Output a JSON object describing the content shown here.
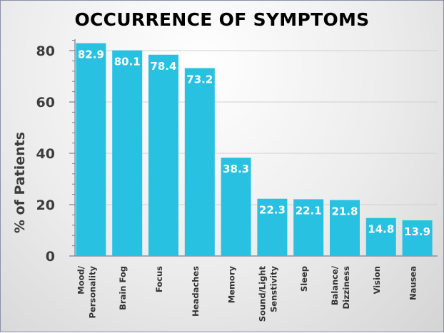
{
  "chart_data": {
    "type": "bar",
    "title": "OCCURRENCE OF SYMPTOMS",
    "xlabel": "",
    "ylabel": "% of Patients",
    "ylim": [
      0,
      85
    ],
    "yticks": [
      0,
      20,
      40,
      60,
      80
    ],
    "grid": true,
    "bar_color": "#29c1e2",
    "categories": [
      [
        "Mood/",
        "Personality"
      ],
      [
        "Brain Fog"
      ],
      [
        "Focus"
      ],
      [
        "Headaches"
      ],
      [
        "Memory"
      ],
      [
        "Sound/Light",
        "Senstivity"
      ],
      [
        "Sleep"
      ],
      [
        "Balance/",
        "Dizziness"
      ],
      [
        "Vision"
      ],
      [
        "Nausea"
      ]
    ],
    "values": [
      82.9,
      80.1,
      78.4,
      73.2,
      38.3,
      22.3,
      22.1,
      21.8,
      14.8,
      13.9
    ]
  }
}
